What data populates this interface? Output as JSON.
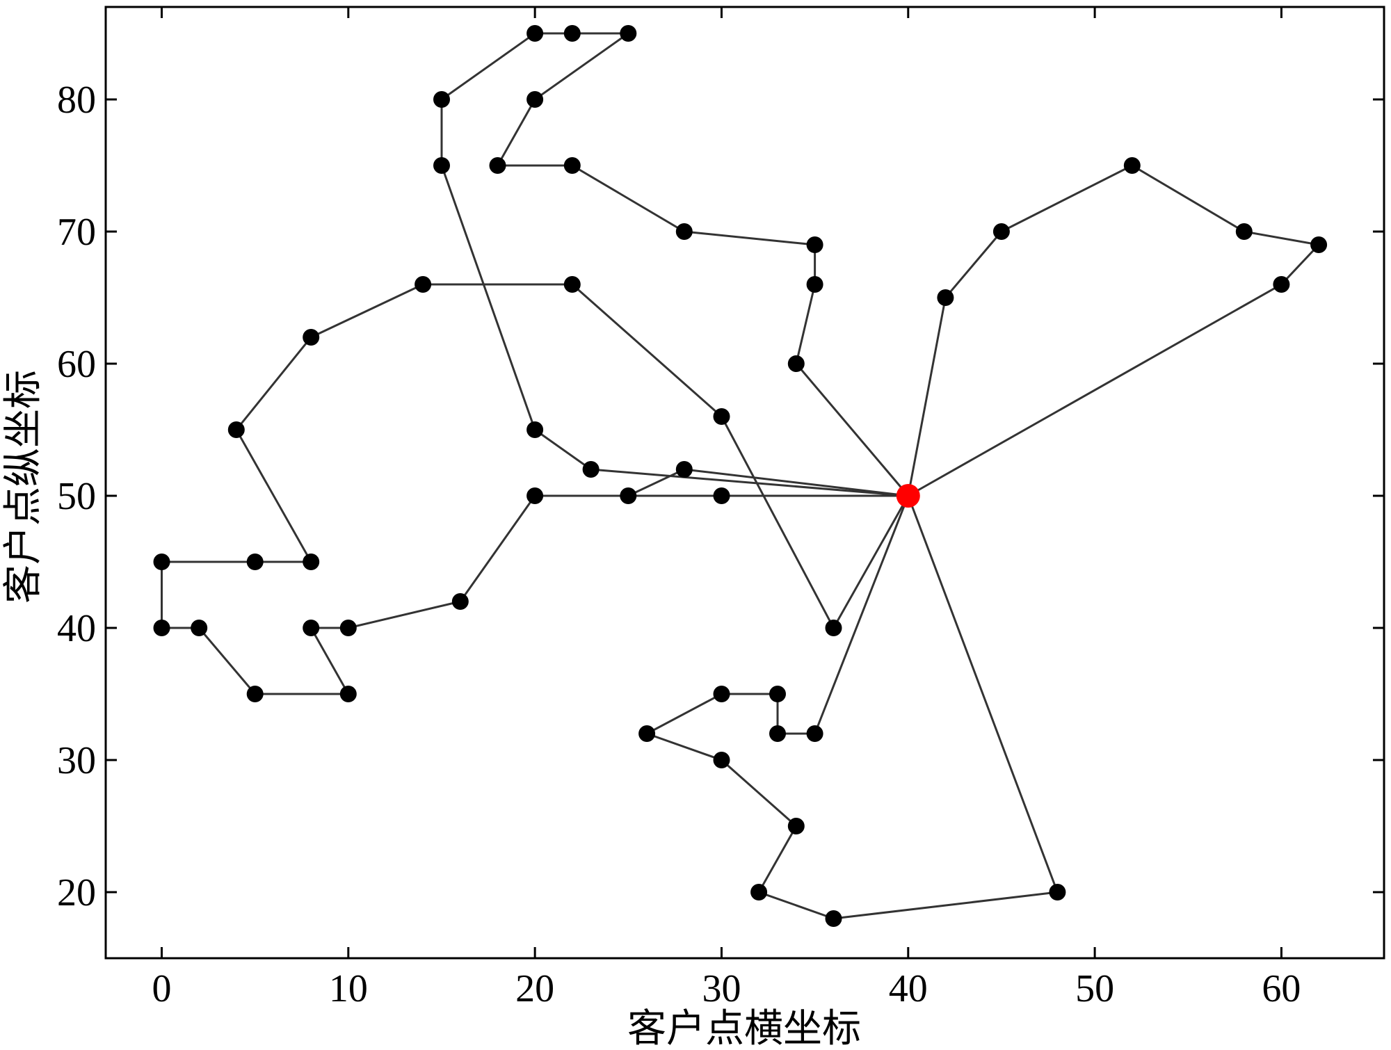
{
  "chart_data": {
    "type": "line",
    "xlabel": "客户点横坐标",
    "ylabel": "客户点纵坐标",
    "xlim": [
      -3,
      65.5
    ],
    "ylim": [
      15,
      87
    ],
    "x_ticks": [
      0,
      10,
      20,
      30,
      40,
      50,
      60
    ],
    "y_ticks": [
      20,
      30,
      40,
      50,
      60,
      70,
      80
    ],
    "grid": false,
    "route_color": "#333333",
    "point_color": "#000000",
    "depot_color": "#ff0000",
    "depot": [
      40,
      50
    ],
    "routes": [
      [
        [
          40,
          50
        ],
        [
          36,
          40
        ],
        [
          30,
          56
        ],
        [
          22,
          66
        ],
        [
          14,
          66
        ],
        [
          8,
          62
        ],
        [
          4,
          55
        ],
        [
          8,
          45
        ],
        [
          5,
          45
        ],
        [
          0,
          45
        ],
        [
          0,
          40
        ],
        [
          2,
          40
        ],
        [
          5,
          35
        ],
        [
          10,
          35
        ],
        [
          8,
          40
        ],
        [
          10,
          40
        ],
        [
          16,
          42
        ],
        [
          20,
          50
        ],
        [
          25,
          50
        ],
        [
          28,
          52
        ],
        [
          40,
          50
        ]
      ],
      [
        [
          40,
          50
        ],
        [
          30,
          50
        ],
        [
          20,
          50
        ]
      ],
      [
        [
          40,
          50
        ],
        [
          23,
          52
        ],
        [
          20,
          55
        ],
        [
          15,
          75
        ],
        [
          15,
          80
        ],
        [
          20,
          85
        ],
        [
          22,
          85
        ],
        [
          25,
          85
        ],
        [
          20,
          80
        ],
        [
          18,
          75
        ],
        [
          22,
          75
        ],
        [
          28,
          70
        ],
        [
          35,
          69
        ],
        [
          35,
          66
        ],
        [
          34,
          60
        ],
        [
          40,
          50
        ]
      ],
      [
        [
          40,
          50
        ],
        [
          42,
          65
        ],
        [
          45,
          70
        ],
        [
          52,
          75
        ],
        [
          58,
          70
        ],
        [
          62,
          69
        ],
        [
          60,
          66
        ],
        [
          40,
          50
        ]
      ],
      [
        [
          40,
          50
        ],
        [
          48,
          20
        ],
        [
          36,
          18
        ],
        [
          32,
          20
        ],
        [
          34,
          25
        ],
        [
          30,
          30
        ],
        [
          26,
          32
        ],
        [
          30,
          35
        ],
        [
          33,
          35
        ],
        [
          33,
          32
        ],
        [
          35,
          32
        ],
        [
          40,
          50
        ]
      ]
    ],
    "points": [
      [
        36,
        40
      ],
      [
        30,
        56
      ],
      [
        22,
        66
      ],
      [
        14,
        66
      ],
      [
        8,
        62
      ],
      [
        4,
        55
      ],
      [
        8,
        45
      ],
      [
        5,
        45
      ],
      [
        0,
        45
      ],
      [
        0,
        40
      ],
      [
        2,
        40
      ],
      [
        5,
        35
      ],
      [
        10,
        35
      ],
      [
        8,
        40
      ],
      [
        10,
        40
      ],
      [
        16,
        42
      ],
      [
        20,
        50
      ],
      [
        25,
        50
      ],
      [
        28,
        52
      ],
      [
        30,
        50
      ],
      [
        23,
        52
      ],
      [
        20,
        55
      ],
      [
        15,
        75
      ],
      [
        15,
        80
      ],
      [
        20,
        85
      ],
      [
        22,
        85
      ],
      [
        25,
        85
      ],
      [
        20,
        80
      ],
      [
        18,
        75
      ],
      [
        22,
        75
      ],
      [
        28,
        70
      ],
      [
        35,
        69
      ],
      [
        35,
        66
      ],
      [
        34,
        60
      ],
      [
        42,
        65
      ],
      [
        45,
        70
      ],
      [
        52,
        75
      ],
      [
        58,
        70
      ],
      [
        62,
        69
      ],
      [
        60,
        66
      ],
      [
        48,
        20
      ],
      [
        36,
        18
      ],
      [
        32,
        20
      ],
      [
        34,
        25
      ],
      [
        30,
        30
      ],
      [
        26,
        32
      ],
      [
        30,
        35
      ],
      [
        33,
        35
      ],
      [
        33,
        32
      ],
      [
        35,
        32
      ]
    ]
  }
}
